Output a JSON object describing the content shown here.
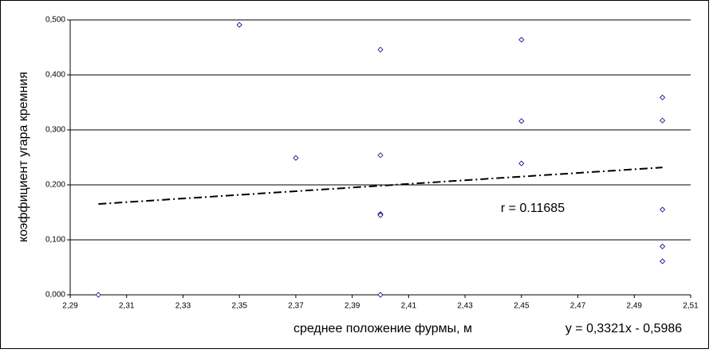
{
  "chart_data": {
    "type": "scatter",
    "x_label": "среднее положение фурмы, м",
    "y_label": "коэффициент угара кремния",
    "annotation": "r = 0.11685",
    "series": [
      {
        "color": "#00008b",
        "x": [
          2.3,
          2.35,
          2.37,
          2.4,
          2.4,
          2.4,
          2.4,
          2.4,
          2.45,
          2.45,
          2.45,
          2.5,
          2.5,
          2.5,
          2.5,
          2.5
        ],
        "values": [
          0.0,
          0.491,
          0.249,
          0.446,
          0.254,
          0.147,
          0.145,
          0.0,
          0.464,
          0.316,
          0.239,
          0.359,
          0.317,
          0.155,
          0.088,
          0.061
        ]
      }
    ],
    "trendline": {
      "label": "y = 0,3321x - 0,5986",
      "slope": 0.3321,
      "intercept": -0.5986,
      "x": [
        2.3,
        2.5
      ]
    },
    "xlim": [
      2.29,
      2.51
    ],
    "xticks": [
      {
        "value": 2.29,
        "label": "2,29"
      },
      {
        "value": 2.31,
        "label": "2,31"
      },
      {
        "value": 2.33,
        "label": "2,33"
      },
      {
        "value": 2.35,
        "label": "2,35"
      },
      {
        "value": 2.37,
        "label": "2,37"
      },
      {
        "value": 2.39,
        "label": "2,39"
      },
      {
        "value": 2.41,
        "label": "2,41"
      },
      {
        "value": 2.43,
        "label": "2,43"
      },
      {
        "value": 2.45,
        "label": "2,45"
      },
      {
        "value": 2.47,
        "label": "2,47"
      },
      {
        "value": 2.49,
        "label": "2,49"
      },
      {
        "value": 2.51,
        "label": "2,51"
      }
    ],
    "ylim": [
      0,
      0.5
    ],
    "yticks": [
      {
        "value": 0,
        "label": "0,000"
      },
      {
        "value": 0.1,
        "label": "0,100"
      },
      {
        "value": 0.2,
        "label": "0,200"
      },
      {
        "value": 0.3,
        "label": "0,300"
      },
      {
        "value": 0.4,
        "label": "0,400"
      },
      {
        "value": 0.5,
        "label": "0,500"
      }
    ],
    "grid": true
  }
}
